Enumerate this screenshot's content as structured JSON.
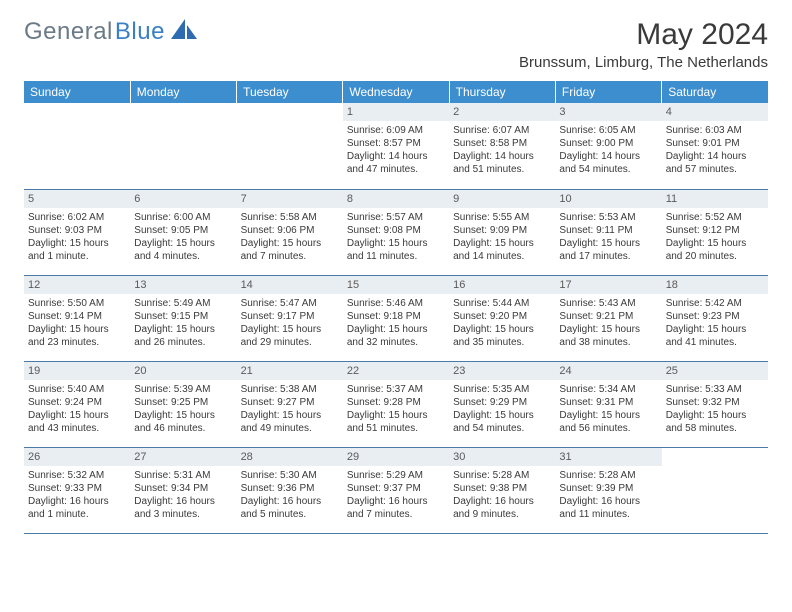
{
  "logo": {
    "general": "General",
    "blue": "Blue"
  },
  "title": "May 2024",
  "location": "Brunssum, Limburg, The Netherlands",
  "colors": {
    "header_bg": "#3d8ecf",
    "daynum_bg": "#e9eef3",
    "rule": "#4a7ba8",
    "logo_gray": "#6b7a87",
    "logo_blue": "#3b7fc4"
  },
  "weekdays": [
    "Sunday",
    "Monday",
    "Tuesday",
    "Wednesday",
    "Thursday",
    "Friday",
    "Saturday"
  ],
  "weeks": [
    [
      null,
      null,
      null,
      {
        "n": "1",
        "sr": "Sunrise: 6:09 AM",
        "ss": "Sunset: 8:57 PM",
        "d1": "Daylight: 14 hours",
        "d2": "and 47 minutes."
      },
      {
        "n": "2",
        "sr": "Sunrise: 6:07 AM",
        "ss": "Sunset: 8:58 PM",
        "d1": "Daylight: 14 hours",
        "d2": "and 51 minutes."
      },
      {
        "n": "3",
        "sr": "Sunrise: 6:05 AM",
        "ss": "Sunset: 9:00 PM",
        "d1": "Daylight: 14 hours",
        "d2": "and 54 minutes."
      },
      {
        "n": "4",
        "sr": "Sunrise: 6:03 AM",
        "ss": "Sunset: 9:01 PM",
        "d1": "Daylight: 14 hours",
        "d2": "and 57 minutes."
      }
    ],
    [
      {
        "n": "5",
        "sr": "Sunrise: 6:02 AM",
        "ss": "Sunset: 9:03 PM",
        "d1": "Daylight: 15 hours",
        "d2": "and 1 minute."
      },
      {
        "n": "6",
        "sr": "Sunrise: 6:00 AM",
        "ss": "Sunset: 9:05 PM",
        "d1": "Daylight: 15 hours",
        "d2": "and 4 minutes."
      },
      {
        "n": "7",
        "sr": "Sunrise: 5:58 AM",
        "ss": "Sunset: 9:06 PM",
        "d1": "Daylight: 15 hours",
        "d2": "and 7 minutes."
      },
      {
        "n": "8",
        "sr": "Sunrise: 5:57 AM",
        "ss": "Sunset: 9:08 PM",
        "d1": "Daylight: 15 hours",
        "d2": "and 11 minutes."
      },
      {
        "n": "9",
        "sr": "Sunrise: 5:55 AM",
        "ss": "Sunset: 9:09 PM",
        "d1": "Daylight: 15 hours",
        "d2": "and 14 minutes."
      },
      {
        "n": "10",
        "sr": "Sunrise: 5:53 AM",
        "ss": "Sunset: 9:11 PM",
        "d1": "Daylight: 15 hours",
        "d2": "and 17 minutes."
      },
      {
        "n": "11",
        "sr": "Sunrise: 5:52 AM",
        "ss": "Sunset: 9:12 PM",
        "d1": "Daylight: 15 hours",
        "d2": "and 20 minutes."
      }
    ],
    [
      {
        "n": "12",
        "sr": "Sunrise: 5:50 AM",
        "ss": "Sunset: 9:14 PM",
        "d1": "Daylight: 15 hours",
        "d2": "and 23 minutes."
      },
      {
        "n": "13",
        "sr": "Sunrise: 5:49 AM",
        "ss": "Sunset: 9:15 PM",
        "d1": "Daylight: 15 hours",
        "d2": "and 26 minutes."
      },
      {
        "n": "14",
        "sr": "Sunrise: 5:47 AM",
        "ss": "Sunset: 9:17 PM",
        "d1": "Daylight: 15 hours",
        "d2": "and 29 minutes."
      },
      {
        "n": "15",
        "sr": "Sunrise: 5:46 AM",
        "ss": "Sunset: 9:18 PM",
        "d1": "Daylight: 15 hours",
        "d2": "and 32 minutes."
      },
      {
        "n": "16",
        "sr": "Sunrise: 5:44 AM",
        "ss": "Sunset: 9:20 PM",
        "d1": "Daylight: 15 hours",
        "d2": "and 35 minutes."
      },
      {
        "n": "17",
        "sr": "Sunrise: 5:43 AM",
        "ss": "Sunset: 9:21 PM",
        "d1": "Daylight: 15 hours",
        "d2": "and 38 minutes."
      },
      {
        "n": "18",
        "sr": "Sunrise: 5:42 AM",
        "ss": "Sunset: 9:23 PM",
        "d1": "Daylight: 15 hours",
        "d2": "and 41 minutes."
      }
    ],
    [
      {
        "n": "19",
        "sr": "Sunrise: 5:40 AM",
        "ss": "Sunset: 9:24 PM",
        "d1": "Daylight: 15 hours",
        "d2": "and 43 minutes."
      },
      {
        "n": "20",
        "sr": "Sunrise: 5:39 AM",
        "ss": "Sunset: 9:25 PM",
        "d1": "Daylight: 15 hours",
        "d2": "and 46 minutes."
      },
      {
        "n": "21",
        "sr": "Sunrise: 5:38 AM",
        "ss": "Sunset: 9:27 PM",
        "d1": "Daylight: 15 hours",
        "d2": "and 49 minutes."
      },
      {
        "n": "22",
        "sr": "Sunrise: 5:37 AM",
        "ss": "Sunset: 9:28 PM",
        "d1": "Daylight: 15 hours",
        "d2": "and 51 minutes."
      },
      {
        "n": "23",
        "sr": "Sunrise: 5:35 AM",
        "ss": "Sunset: 9:29 PM",
        "d1": "Daylight: 15 hours",
        "d2": "and 54 minutes."
      },
      {
        "n": "24",
        "sr": "Sunrise: 5:34 AM",
        "ss": "Sunset: 9:31 PM",
        "d1": "Daylight: 15 hours",
        "d2": "and 56 minutes."
      },
      {
        "n": "25",
        "sr": "Sunrise: 5:33 AM",
        "ss": "Sunset: 9:32 PM",
        "d1": "Daylight: 15 hours",
        "d2": "and 58 minutes."
      }
    ],
    [
      {
        "n": "26",
        "sr": "Sunrise: 5:32 AM",
        "ss": "Sunset: 9:33 PM",
        "d1": "Daylight: 16 hours",
        "d2": "and 1 minute."
      },
      {
        "n": "27",
        "sr": "Sunrise: 5:31 AM",
        "ss": "Sunset: 9:34 PM",
        "d1": "Daylight: 16 hours",
        "d2": "and 3 minutes."
      },
      {
        "n": "28",
        "sr": "Sunrise: 5:30 AM",
        "ss": "Sunset: 9:36 PM",
        "d1": "Daylight: 16 hours",
        "d2": "and 5 minutes."
      },
      {
        "n": "29",
        "sr": "Sunrise: 5:29 AM",
        "ss": "Sunset: 9:37 PM",
        "d1": "Daylight: 16 hours",
        "d2": "and 7 minutes."
      },
      {
        "n": "30",
        "sr": "Sunrise: 5:28 AM",
        "ss": "Sunset: 9:38 PM",
        "d1": "Daylight: 16 hours",
        "d2": "and 9 minutes."
      },
      {
        "n": "31",
        "sr": "Sunrise: 5:28 AM",
        "ss": "Sunset: 9:39 PM",
        "d1": "Daylight: 16 hours",
        "d2": "and 11 minutes."
      },
      null
    ]
  ]
}
